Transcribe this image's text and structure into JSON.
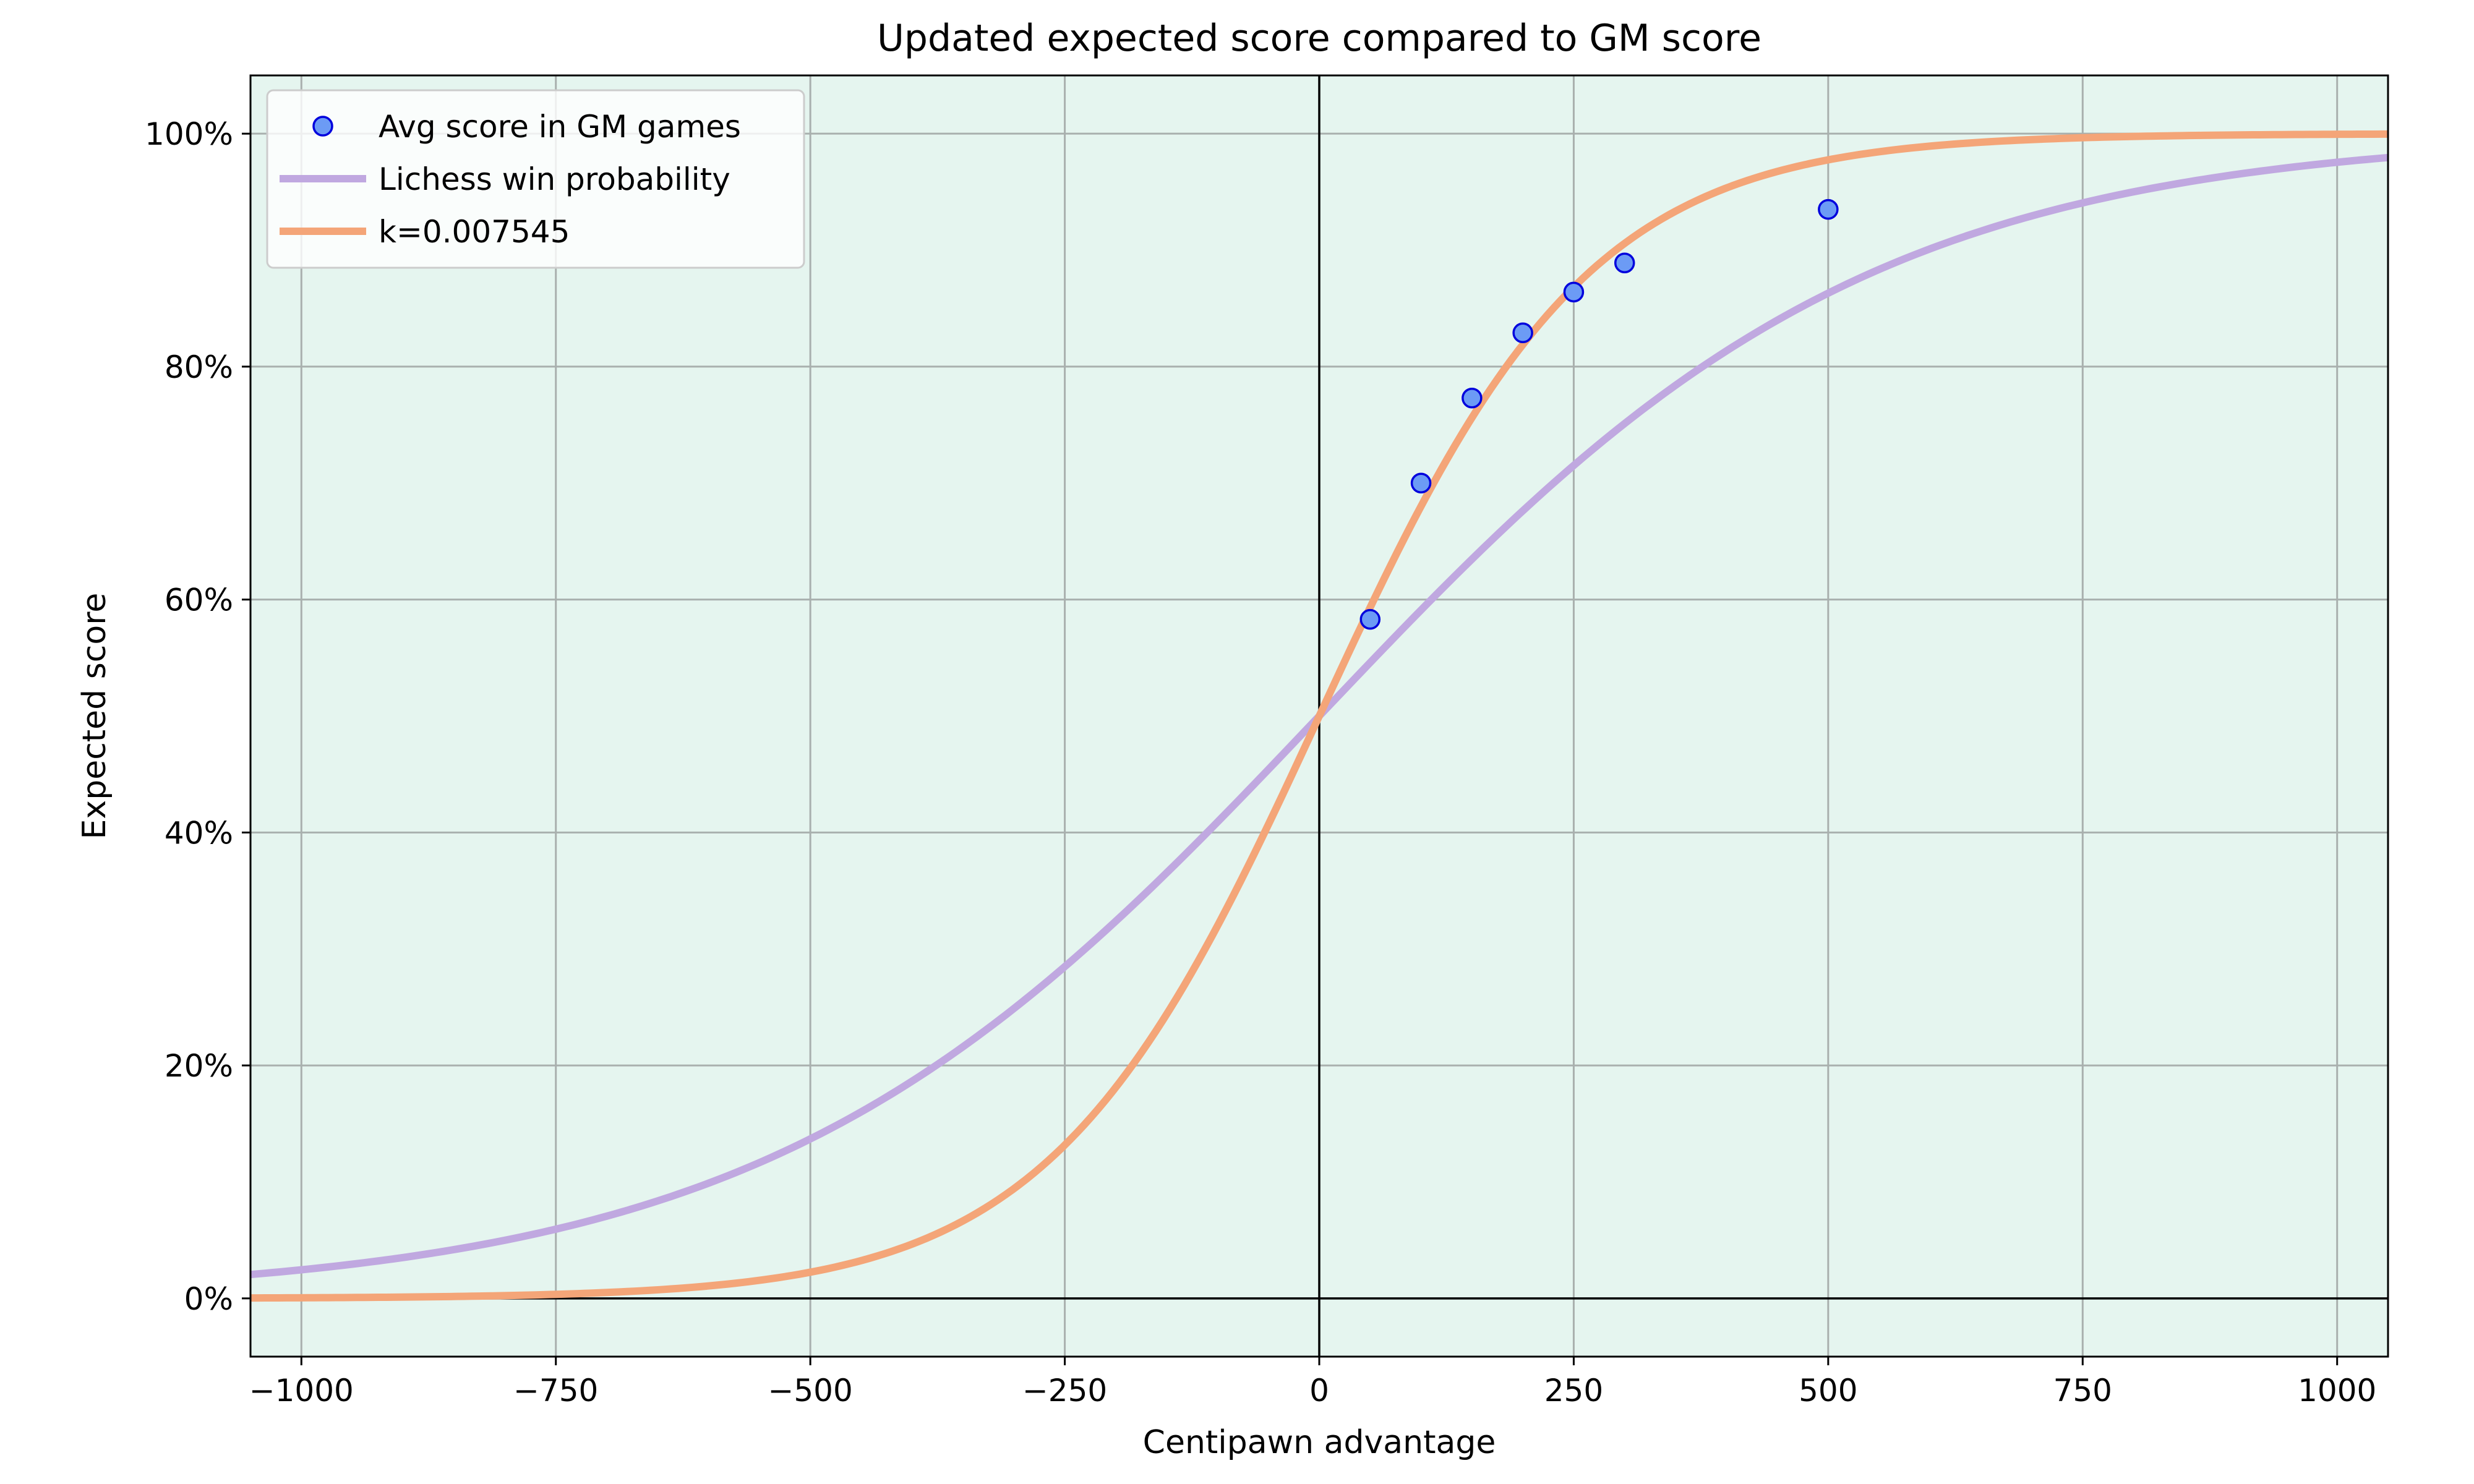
{
  "chart_data": {
    "type": "line",
    "title": "Updated expected score compared to GM score",
    "xlabel": "Centipawn advantage",
    "ylabel": "Expected score",
    "xlim": [
      -1050,
      1050
    ],
    "ylim": [
      -0.05,
      1.05
    ],
    "x_ticks": [
      -1000,
      -750,
      -500,
      -250,
      0,
      250,
      500,
      750,
      1000
    ],
    "x_tick_labels": [
      "−1000",
      "−750",
      "−500",
      "−250",
      "0",
      "250",
      "500",
      "750",
      "1000"
    ],
    "y_ticks": [
      0,
      0.2,
      0.4,
      0.6,
      0.8,
      1.0
    ],
    "y_tick_labels": [
      "0%",
      "20%",
      "40%",
      "60%",
      "80%",
      "100%"
    ],
    "grid": true,
    "background": "#e5f5ef",
    "legend_position": "top-left",
    "series": [
      {
        "name": "Avg score in GM games",
        "kind": "scatter",
        "color": "#6c9bf5",
        "edge_color": "#0000dd",
        "x": [
          50,
          100,
          150,
          200,
          250,
          300,
          500
        ],
        "y": [
          0.583,
          0.7,
          0.773,
          0.829,
          0.864,
          0.889,
          0.935
        ]
      },
      {
        "name": "Lichess win probability",
        "kind": "line",
        "color": "#c0a8e0",
        "k": 0.00368208,
        "x": [
          -1050,
          -1000,
          -900,
          -800,
          -750,
          -700,
          -600,
          -500,
          -400,
          -300,
          -250,
          -200,
          -100,
          0,
          100,
          200,
          250,
          300,
          400,
          500,
          600,
          700,
          750,
          800,
          900,
          1000,
          1050
        ],
        "y": [
          0.021,
          0.0246,
          0.0351,
          0.0499,
          0.0594,
          0.0706,
          0.099,
          0.1369,
          0.1867,
          0.2489,
          0.2845,
          0.3237,
          0.4083,
          0.5,
          0.5917,
          0.6763,
          0.7155,
          0.7511,
          0.8133,
          0.8631,
          0.901,
          0.9294,
          0.9406,
          0.9501,
          0.9649,
          0.9754,
          0.979
        ]
      },
      {
        "name": "k=0.007545",
        "kind": "line",
        "color": "#f4a578",
        "k": 0.007545,
        "x": [
          -1050,
          -1000,
          -900,
          -800,
          -750,
          -700,
          -600,
          -500,
          -400,
          -300,
          -250,
          -200,
          -150,
          -100,
          -50,
          0,
          50,
          100,
          150,
          200,
          250,
          300,
          400,
          500,
          600,
          700,
          750,
          800,
          900,
          1000,
          1050
        ],
        "y": [
          0.0004,
          0.0005,
          0.0011,
          0.0024,
          0.0035,
          0.0051,
          0.0107,
          0.0225,
          0.0467,
          0.0941,
          0.1317,
          0.1811,
          0.244,
          0.3198,
          0.4057,
          0.5,
          0.5943,
          0.6802,
          0.756,
          0.8189,
          0.8683,
          0.9059,
          0.9533,
          0.9775,
          0.9893,
          0.9949,
          0.9965,
          0.9976,
          0.9989,
          0.9995,
          0.9996
        ]
      }
    ]
  },
  "colors": {
    "grid": "#a9b0ae",
    "axis_zero": "#000000",
    "legend_bg": "#ffffff"
  }
}
